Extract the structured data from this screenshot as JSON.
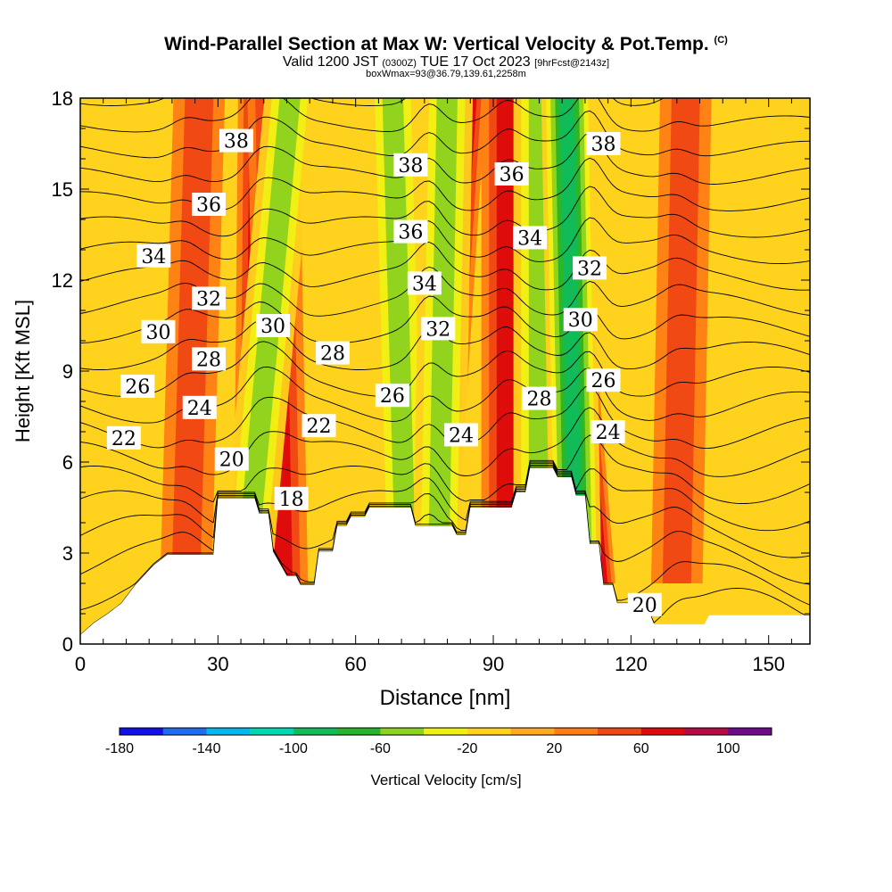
{
  "header": {
    "title": "Wind-Parallel Section at Max W: Vertical Velocity & Pot.Temp.",
    "copyright": "(C)",
    "valid_prefix": "Valid 1200 JST",
    "utc": "(0300Z)",
    "valid_date": "TUE 17 Oct 2023",
    "fcst": "[9hrFcst@2143z]",
    "box_info": "boxWmax=93@36.79,139.61,2258m"
  },
  "colors": {
    "terrain": "#ffffff",
    "axis": "#000000",
    "contour": "#000000",
    "background_field": "#ffd21e"
  },
  "chart_data": {
    "type": "heatmap",
    "xlabel": "Distance [nm]",
    "ylabel": "Height [Kft MSL]",
    "xlim": [
      0,
      159
    ],
    "ylim": [
      0,
      18
    ],
    "x_ticks": [
      0,
      30,
      60,
      90,
      120,
      150
    ],
    "x_tick_labels": [
      "0",
      "30",
      "60",
      "90",
      "120",
      "150"
    ],
    "y_ticks": [
      0,
      3,
      6,
      9,
      12,
      15,
      18
    ],
    "y_tick_labels": [
      "0",
      "3",
      "6",
      "9",
      "12",
      "15",
      "18"
    ],
    "colorbar": {
      "label": "Vertical Velocity [cm/s]",
      "range": [
        -180,
        120
      ],
      "step": 20,
      "tick_values": [
        -180,
        -140,
        -100,
        -60,
        -20,
        20,
        60,
        100
      ],
      "tick_labels": [
        "-180",
        "-140",
        "-100",
        "-60",
        "-20",
        "20",
        "60",
        "100"
      ],
      "colors": [
        "#1010e8",
        "#1e6cf0",
        "#00b8f0",
        "#00d8b4",
        "#10bc5a",
        "#28b428",
        "#8cd21e",
        "#f0f014",
        "#ffd21e",
        "#ffaa1e",
        "#ff7d14",
        "#f04614",
        "#dc0a0a",
        "#b40a46",
        "#6e0a8c"
      ]
    },
    "terrain_kft": [
      [
        0,
        0.3
      ],
      [
        3,
        0.7
      ],
      [
        6,
        1.0
      ],
      [
        9,
        1.35
      ],
      [
        12,
        1.95
      ],
      [
        16,
        2.6
      ],
      [
        19,
        2.95
      ],
      [
        29,
        2.95
      ],
      [
        30,
        4.8
      ],
      [
        38,
        4.8
      ],
      [
        39,
        4.3
      ],
      [
        41,
        4.3
      ],
      [
        42,
        3.05
      ],
      [
        45,
        2.25
      ],
      [
        47,
        2.25
      ],
      [
        48,
        1.95
      ],
      [
        51,
        1.95
      ],
      [
        52,
        3.05
      ],
      [
        55,
        3.05
      ],
      [
        56,
        3.9
      ],
      [
        58,
        3.9
      ],
      [
        59,
        4.2
      ],
      [
        62,
        4.2
      ],
      [
        63,
        4.5
      ],
      [
        72,
        4.5
      ],
      [
        73,
        3.9
      ],
      [
        81,
        3.9
      ],
      [
        82,
        3.6
      ],
      [
        84,
        3.6
      ],
      [
        85,
        4.5
      ],
      [
        88,
        4.5
      ],
      [
        89,
        4.5
      ],
      [
        94,
        4.5
      ],
      [
        95,
        5.0
      ],
      [
        97,
        5.0
      ],
      [
        98,
        5.8
      ],
      [
        103,
        5.8
      ],
      [
        104,
        5.5
      ],
      [
        107,
        5.5
      ],
      [
        108,
        4.9
      ],
      [
        110,
        4.9
      ],
      [
        111,
        3.3
      ],
      [
        113,
        3.3
      ],
      [
        114,
        1.95
      ],
      [
        116,
        1.95
      ],
      [
        117,
        1.35
      ],
      [
        120,
        1.35
      ],
      [
        121,
        1.05
      ],
      [
        124,
        1.05
      ],
      [
        125,
        0.65
      ],
      [
        136,
        0.65
      ],
      [
        137,
        0.95
      ],
      [
        159,
        0.95
      ]
    ],
    "updrafts": [
      {
        "x": 39,
        "w": 60,
        "x_top": 40
      },
      {
        "x": 44,
        "w": 40,
        "x_top": 42
      },
      {
        "x": 76,
        "w": 70,
        "x_top": 83
      },
      {
        "x": 93,
        "w": 45,
        "x_top": 93
      },
      {
        "x": 111,
        "w": 93,
        "x_top": 102
      },
      {
        "x": 23,
        "w": 25,
        "x_top": 26
      },
      {
        "x": 130,
        "w": 25,
        "x_top": 132
      }
    ],
    "downdrafts": [
      {
        "x": 36,
        "w": -45,
        "x_top": 46
      },
      {
        "x": 71,
        "w": -35,
        "x_top": 68
      },
      {
        "x": 78,
        "w": -40,
        "x_top": 80
      },
      {
        "x": 100,
        "w": -40,
        "x_top": 100
      },
      {
        "x": 108,
        "w": -70,
        "x_top": 106
      }
    ],
    "theta_contours": {
      "min": 18,
      "max": 40,
      "step": 1,
      "label_step": 2
    },
    "contour_labels": [
      {
        "text": "38",
        "x": 34,
        "y": 16.6
      },
      {
        "text": "36",
        "x": 28,
        "y": 14.5
      },
      {
        "text": "34",
        "x": 16,
        "y": 12.8
      },
      {
        "text": "32",
        "x": 28,
        "y": 11.4
      },
      {
        "text": "30",
        "x": 17,
        "y": 10.3
      },
      {
        "text": "28",
        "x": 28,
        "y": 9.4
      },
      {
        "text": "26",
        "x": 12.5,
        "y": 8.5
      },
      {
        "text": "24",
        "x": 26,
        "y": 7.8
      },
      {
        "text": "22",
        "x": 9.5,
        "y": 6.8
      },
      {
        "text": "20",
        "x": 33,
        "y": 6.1
      },
      {
        "text": "30",
        "x": 42,
        "y": 10.5
      },
      {
        "text": "18",
        "x": 46,
        "y": 4.8
      },
      {
        "text": "28",
        "x": 55,
        "y": 9.6
      },
      {
        "text": "22",
        "x": 52,
        "y": 7.2
      },
      {
        "text": "38",
        "x": 72,
        "y": 15.8
      },
      {
        "text": "36",
        "x": 72,
        "y": 13.6
      },
      {
        "text": "34",
        "x": 75,
        "y": 11.9
      },
      {
        "text": "32",
        "x": 78,
        "y": 10.4
      },
      {
        "text": "26",
        "x": 68,
        "y": 8.2
      },
      {
        "text": "24",
        "x": 83,
        "y": 6.9
      },
      {
        "text": "36",
        "x": 94,
        "y": 15.5
      },
      {
        "text": "34",
        "x": 98,
        "y": 13.4
      },
      {
        "text": "28",
        "x": 100,
        "y": 8.1
      },
      {
        "text": "38",
        "x": 114,
        "y": 16.5
      },
      {
        "text": "32",
        "x": 111,
        "y": 12.4
      },
      {
        "text": "30",
        "x": 109,
        "y": 10.7
      },
      {
        "text": "26",
        "x": 114,
        "y": 8.7
      },
      {
        "text": "24",
        "x": 115,
        "y": 7.0
      },
      {
        "text": "20",
        "x": 123,
        "y": 1.3
      }
    ]
  }
}
